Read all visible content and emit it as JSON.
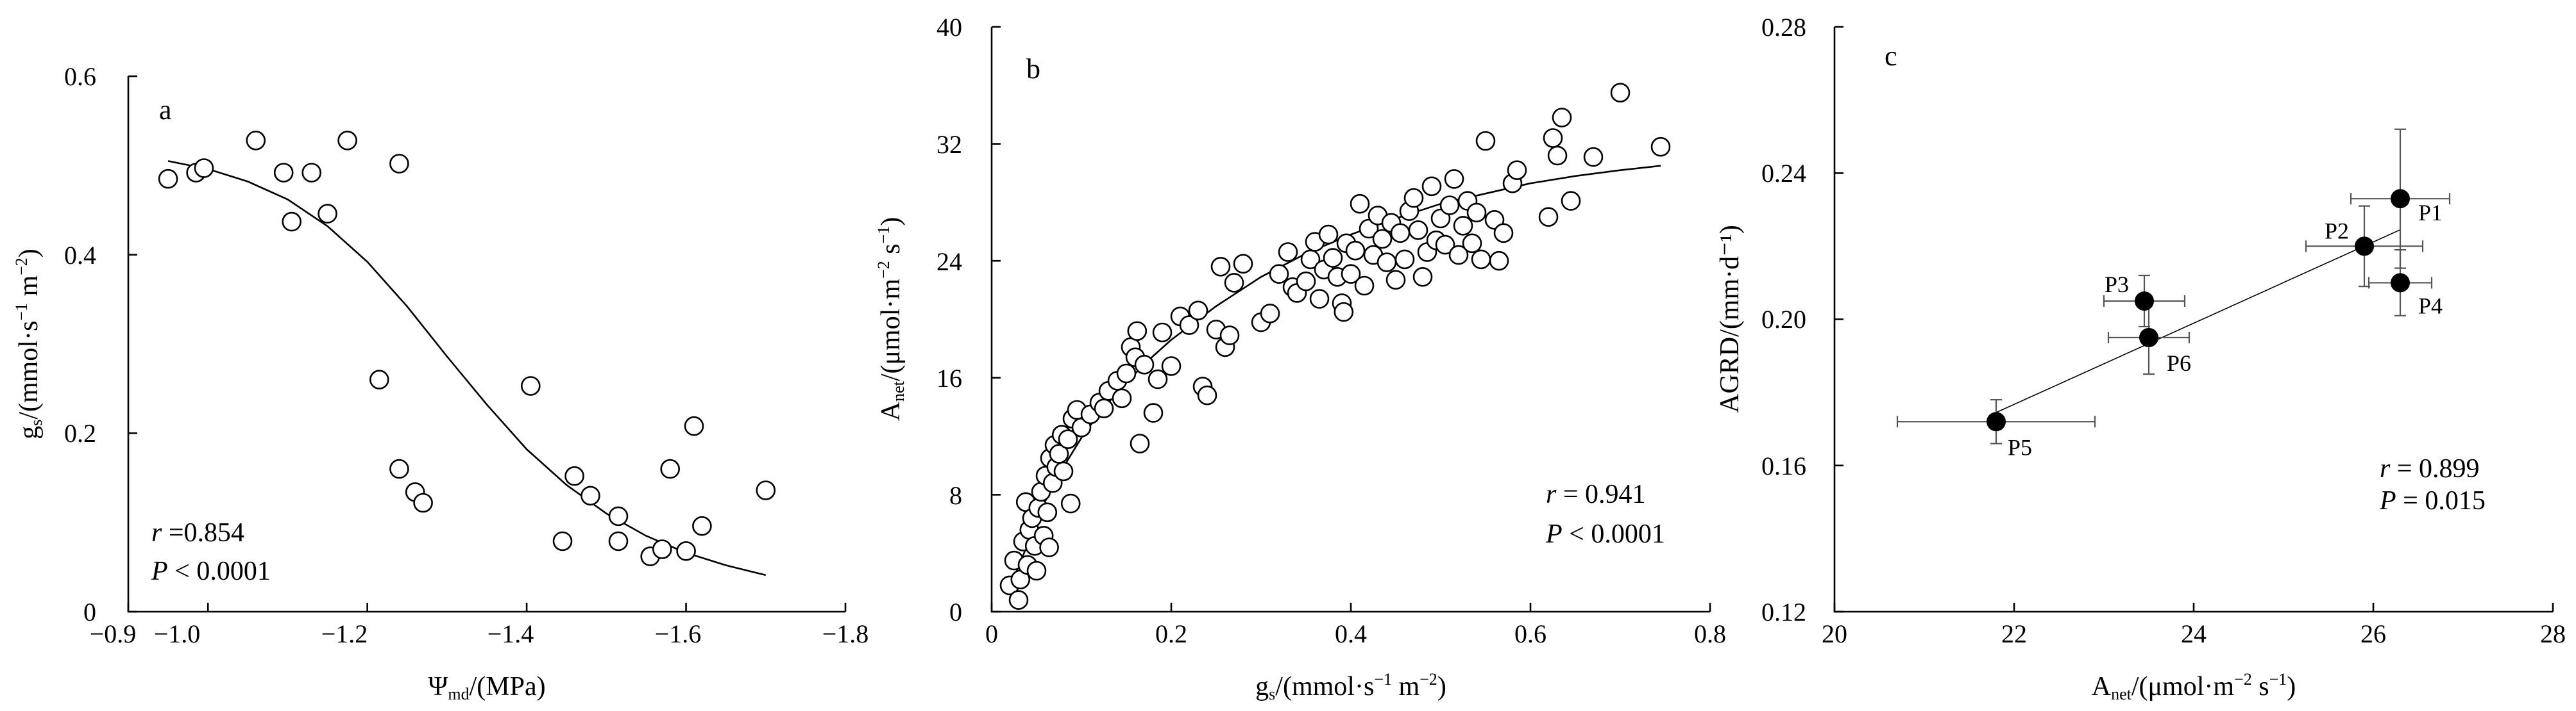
{
  "chart_data": [
    {
      "panel": "a",
      "type": "scatter",
      "xlabel": "Ψmd/(MPa)",
      "ylabel": "gs/(mmol·s⁻¹ m⁻²)",
      "xlim": [
        -0.9,
        -1.8
      ],
      "ylim": [
        0,
        0.6
      ],
      "xticks": [
        "−0.9",
        "−1.0",
        "−1.2",
        "−1.4",
        "−1.6",
        "−1.8"
      ],
      "yticks": [
        "0",
        "0.2",
        "0.4",
        "0.6"
      ],
      "stats": {
        "r": "0.854",
        "p": "< 0.0001"
      },
      "points": [
        [
          -0.95,
          0.485
        ],
        [
          -0.985,
          0.492
        ],
        [
          -0.995,
          0.497
        ],
        [
          -1.06,
          0.528
        ],
        [
          -1.095,
          0.492
        ],
        [
          -1.105,
          0.437
        ],
        [
          -1.13,
          0.492
        ],
        [
          -1.15,
          0.446
        ],
        [
          -1.175,
          0.528
        ],
        [
          -1.215,
          0.26
        ],
        [
          -1.24,
          0.502
        ],
        [
          -1.24,
          0.16
        ],
        [
          -1.26,
          0.134
        ],
        [
          -1.27,
          0.122
        ],
        [
          -1.405,
          0.253
        ],
        [
          -1.445,
          0.079
        ],
        [
          -1.46,
          0.152
        ],
        [
          -1.48,
          0.13
        ],
        [
          -1.515,
          0.107
        ],
        [
          -1.515,
          0.079
        ],
        [
          -1.555,
          0.062
        ],
        [
          -1.57,
          0.07
        ],
        [
          -1.58,
          0.16
        ],
        [
          -1.6,
          0.068
        ],
        [
          -1.61,
          0.208
        ],
        [
          -1.62,
          0.096
        ],
        [
          -1.7,
          0.136
        ]
      ],
      "fit": [
        [
          -0.95,
          0.505
        ],
        [
          -1.0,
          0.496
        ],
        [
          -1.05,
          0.482
        ],
        [
          -1.1,
          0.462
        ],
        [
          -1.15,
          0.432
        ],
        [
          -1.2,
          0.392
        ],
        [
          -1.25,
          0.342
        ],
        [
          -1.3,
          0.286
        ],
        [
          -1.35,
          0.232
        ],
        [
          -1.4,
          0.182
        ],
        [
          -1.45,
          0.142
        ],
        [
          -1.5,
          0.11
        ],
        [
          -1.55,
          0.085
        ],
        [
          -1.6,
          0.066
        ],
        [
          -1.65,
          0.052
        ],
        [
          -1.7,
          0.041
        ]
      ]
    },
    {
      "panel": "b",
      "type": "scatter",
      "xlabel": "gs/(mmol·s⁻¹ m⁻²)",
      "ylabel": "Anet/(μmol·m⁻² s⁻¹)",
      "xlim": [
        0,
        0.8
      ],
      "ylim": [
        0,
        40
      ],
      "xticks": [
        "0",
        "0.2",
        "0.4",
        "0.6",
        "0.8"
      ],
      "yticks": [
        "0",
        "8",
        "16",
        "24",
        "32",
        "40"
      ],
      "stats": {
        "r": "0.941",
        "p": "< 0.0001"
      },
      "points": [
        [
          0.02,
          1.8
        ],
        [
          0.025,
          3.5
        ],
        [
          0.03,
          0.8
        ],
        [
          0.032,
          2.2
        ],
        [
          0.035,
          4.8
        ],
        [
          0.038,
          7.5
        ],
        [
          0.04,
          3.2
        ],
        [
          0.042,
          5.6
        ],
        [
          0.045,
          6.4
        ],
        [
          0.048,
          4.5
        ],
        [
          0.05,
          2.8
        ],
        [
          0.052,
          7.1
        ],
        [
          0.055,
          8.2
        ],
        [
          0.058,
          5.2
        ],
        [
          0.06,
          9.3
        ],
        [
          0.062,
          6.8
        ],
        [
          0.064,
          4.4
        ],
        [
          0.065,
          10.5
        ],
        [
          0.068,
          8.8
        ],
        [
          0.07,
          11.4
        ],
        [
          0.072,
          9.9
        ],
        [
          0.075,
          10.8
        ],
        [
          0.078,
          12.1
        ],
        [
          0.08,
          9.6
        ],
        [
          0.085,
          11.8
        ],
        [
          0.088,
          7.4
        ],
        [
          0.09,
          13.2
        ],
        [
          0.095,
          13.8
        ],
        [
          0.1,
          12.6
        ],
        [
          0.11,
          13.5
        ],
        [
          0.12,
          14.3
        ],
        [
          0.125,
          13.9
        ],
        [
          0.13,
          15.1
        ],
        [
          0.14,
          15.8
        ],
        [
          0.145,
          14.6
        ],
        [
          0.15,
          16.3
        ],
        [
          0.155,
          18.1
        ],
        [
          0.16,
          17.4
        ],
        [
          0.162,
          19.2
        ],
        [
          0.165,
          11.5
        ],
        [
          0.17,
          16.9
        ],
        [
          0.18,
          13.6
        ],
        [
          0.185,
          15.9
        ],
        [
          0.19,
          19.1
        ],
        [
          0.2,
          16.8
        ],
        [
          0.21,
          20.2
        ],
        [
          0.22,
          19.6
        ],
        [
          0.23,
          20.6
        ],
        [
          0.235,
          15.4
        ],
        [
          0.24,
          14.8
        ],
        [
          0.25,
          19.3
        ],
        [
          0.255,
          23.6
        ],
        [
          0.26,
          18.1
        ],
        [
          0.265,
          18.9
        ],
        [
          0.27,
          22.5
        ],
        [
          0.28,
          23.8
        ],
        [
          0.3,
          19.8
        ],
        [
          0.31,
          20.4
        ],
        [
          0.32,
          23.1
        ],
        [
          0.33,
          24.6
        ],
        [
          0.335,
          22.2
        ],
        [
          0.34,
          21.8
        ],
        [
          0.35,
          22.6
        ],
        [
          0.355,
          24.1
        ],
        [
          0.36,
          25.3
        ],
        [
          0.365,
          21.4
        ],
        [
          0.37,
          23.4
        ],
        [
          0.375,
          25.8
        ],
        [
          0.38,
          24.2
        ],
        [
          0.385,
          22.9
        ],
        [
          0.39,
          21.1
        ],
        [
          0.392,
          20.5
        ],
        [
          0.395,
          25.2
        ],
        [
          0.4,
          23.1
        ],
        [
          0.405,
          24.7
        ],
        [
          0.41,
          27.9
        ],
        [
          0.415,
          22.3
        ],
        [
          0.42,
          26.2
        ],
        [
          0.425,
          24.4
        ],
        [
          0.43,
          27.1
        ],
        [
          0.435,
          25.5
        ],
        [
          0.44,
          23.9
        ],
        [
          0.445,
          26.6
        ],
        [
          0.45,
          22.7
        ],
        [
          0.455,
          25.9
        ],
        [
          0.46,
          24.1
        ],
        [
          0.465,
          27.4
        ],
        [
          0.47,
          28.3
        ],
        [
          0.475,
          26.1
        ],
        [
          0.48,
          22.9
        ],
        [
          0.485,
          24.6
        ],
        [
          0.49,
          29.1
        ],
        [
          0.495,
          25.4
        ],
        [
          0.5,
          26.9
        ],
        [
          0.505,
          25.1
        ],
        [
          0.51,
          27.8
        ],
        [
          0.515,
          29.6
        ],
        [
          0.52,
          24.4
        ],
        [
          0.525,
          26.4
        ],
        [
          0.53,
          28.1
        ],
        [
          0.535,
          25.2
        ],
        [
          0.54,
          27.3
        ],
        [
          0.545,
          24.1
        ],
        [
          0.55,
          32.2
        ],
        [
          0.56,
          26.8
        ],
        [
          0.565,
          24.0
        ],
        [
          0.57,
          25.9
        ],
        [
          0.58,
          29.3
        ],
        [
          0.585,
          30.2
        ],
        [
          0.62,
          27.0
        ],
        [
          0.625,
          32.4
        ],
        [
          0.63,
          31.2
        ],
        [
          0.635,
          33.8
        ],
        [
          0.645,
          28.1
        ],
        [
          0.67,
          31.1
        ],
        [
          0.7,
          35.5
        ],
        [
          0.745,
          31.8
        ]
      ],
      "fit": [
        [
          0.02,
          1.6
        ],
        [
          0.04,
          4.6
        ],
        [
          0.06,
          7.6
        ],
        [
          0.08,
          9.9
        ],
        [
          0.1,
          11.9
        ],
        [
          0.12,
          13.6
        ],
        [
          0.15,
          15.7
        ],
        [
          0.18,
          17.5
        ],
        [
          0.2,
          18.6
        ],
        [
          0.25,
          20.9
        ],
        [
          0.3,
          22.9
        ],
        [
          0.35,
          24.5
        ],
        [
          0.4,
          25.8
        ],
        [
          0.45,
          26.9
        ],
        [
          0.5,
          27.9
        ],
        [
          0.55,
          28.6
        ],
        [
          0.6,
          29.3
        ],
        [
          0.65,
          29.8
        ],
        [
          0.7,
          30.2
        ],
        [
          0.745,
          30.5
        ]
      ]
    },
    {
      "panel": "c",
      "type": "scatter",
      "xlabel": "Anet/(μmol·m⁻² s⁻¹)",
      "ylabel": "AGRD/(mm·d⁻¹)",
      "xlim": [
        20,
        28
      ],
      "ylim": [
        0.12,
        0.28
      ],
      "xticks": [
        "20",
        "22",
        "24",
        "26",
        "28"
      ],
      "yticks": [
        "0.12",
        "0.16",
        "0.20",
        "0.24",
        "0.28"
      ],
      "stats": {
        "r": "0.899",
        "p": "= 0.015"
      },
      "points": [
        {
          "label": "P1",
          "x": 26.3,
          "y": 0.233,
          "xerr": 0.55,
          "yerr": 0.019
        },
        {
          "label": "P2",
          "x": 25.9,
          "y": 0.22,
          "xerr": 0.65,
          "yerr": 0.011
        },
        {
          "label": "P3",
          "x": 23.45,
          "y": 0.205,
          "xerr": 0.45,
          "yerr": 0.007
        },
        {
          "label": "P4",
          "x": 26.3,
          "y": 0.21,
          "xerr": 0.35,
          "yerr": 0.009
        },
        {
          "label": "P5",
          "x": 21.8,
          "y": 0.172,
          "xerr": 1.1,
          "yerr": 0.006
        },
        {
          "label": "P6",
          "x": 23.5,
          "y": 0.195,
          "xerr": 0.45,
          "yerr": 0.01
        }
      ],
      "fit": [
        [
          21.8,
          0.1745
        ],
        [
          26.3,
          0.2245
        ]
      ]
    }
  ]
}
